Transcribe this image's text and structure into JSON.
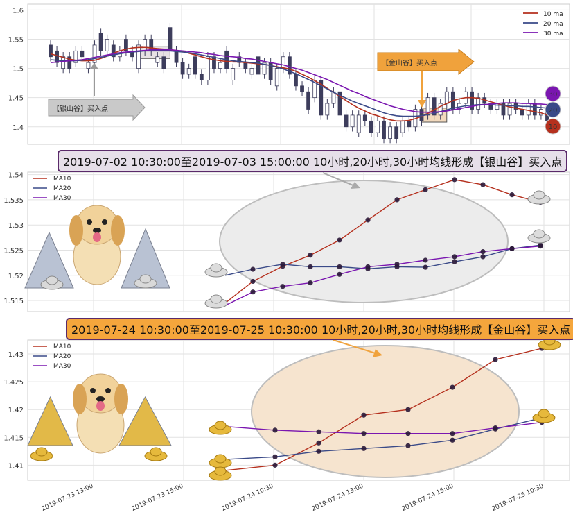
{
  "chart_data": [
    {
      "type": "candlestick",
      "ylim": [
        1.37,
        1.61
      ],
      "yticks": [
        1.4,
        1.45,
        1.5,
        1.55,
        1.6
      ],
      "ma_lines": [
        {
          "name": "10 ma",
          "color": "#b5301e",
          "values": [
            1.525,
            1.522,
            1.519,
            1.516,
            1.514,
            1.513,
            1.513,
            1.514,
            1.517,
            1.521,
            1.526,
            1.53,
            1.533,
            1.535,
            1.536,
            1.536,
            1.535,
            1.534,
            1.533,
            1.532,
            1.531,
            1.529,
            1.526,
            1.523,
            1.52,
            1.517,
            1.515,
            1.513,
            1.512,
            1.511,
            1.511,
            1.51,
            1.509,
            1.508,
            1.507,
            1.505,
            1.503,
            1.501,
            1.499,
            1.495,
            1.49,
            1.485,
            1.479,
            1.473,
            1.466,
            1.459,
            1.452,
            1.445,
            1.438,
            1.432,
            1.427,
            1.422,
            1.419,
            1.415,
            1.412,
            1.41,
            1.41,
            1.411,
            1.414,
            1.418,
            1.423,
            1.429,
            1.435,
            1.44,
            1.445,
            1.448,
            1.45,
            1.45,
            1.449,
            1.446,
            1.443,
            1.44,
            1.437,
            1.434,
            1.432,
            1.43,
            1.428,
            1.426,
            1.424,
            1.42
          ]
        },
        {
          "name": "20 ma",
          "color": "#3a4a88",
          "values": [
            1.515,
            1.514,
            1.513,
            1.513,
            1.513,
            1.514,
            1.515,
            1.517,
            1.519,
            1.521,
            1.523,
            1.525,
            1.527,
            1.528,
            1.529,
            1.53,
            1.53,
            1.53,
            1.53,
            1.53,
            1.529,
            1.528,
            1.527,
            1.525,
            1.523,
            1.521,
            1.519,
            1.517,
            1.515,
            1.513,
            1.512,
            1.511,
            1.51,
            1.509,
            1.507,
            1.505,
            1.502,
            1.499,
            1.495,
            1.491,
            1.486,
            1.481,
            1.476,
            1.47,
            1.465,
            1.459,
            1.454,
            1.449,
            1.444,
            1.44,
            1.436,
            1.432,
            1.428,
            1.424,
            1.421,
            1.419,
            1.418,
            1.418,
            1.418,
            1.419,
            1.421,
            1.423,
            1.426,
            1.429,
            1.432,
            1.434,
            1.436,
            1.437,
            1.438,
            1.438,
            1.438,
            1.437,
            1.437,
            1.436,
            1.436,
            1.435,
            1.435,
            1.434,
            1.433,
            1.432
          ]
        },
        {
          "name": "30 ma",
          "color": "#7a16b0",
          "values": [
            1.51,
            1.511,
            1.512,
            1.513,
            1.514,
            1.515,
            1.517,
            1.519,
            1.521,
            1.523,
            1.525,
            1.527,
            1.528,
            1.529,
            1.53,
            1.531,
            1.532,
            1.532,
            1.532,
            1.532,
            1.531,
            1.53,
            1.529,
            1.528,
            1.527,
            1.525,
            1.524,
            1.522,
            1.521,
            1.52,
            1.519,
            1.517,
            1.516,
            1.514,
            1.512,
            1.51,
            1.508,
            1.506,
            1.503,
            1.5,
            1.497,
            1.493,
            1.489,
            1.485,
            1.481,
            1.476,
            1.471,
            1.466,
            1.461,
            1.457,
            1.452,
            1.448,
            1.444,
            1.44,
            1.436,
            1.433,
            1.43,
            1.428,
            1.426,
            1.425,
            1.425,
            1.425,
            1.426,
            1.427,
            1.429,
            1.431,
            1.433,
            1.435,
            1.437,
            1.438,
            1.439,
            1.44,
            1.441,
            1.441,
            1.441,
            1.44,
            1.44,
            1.439,
            1.439,
            1.438
          ]
        }
      ],
      "candles": [
        [
          1.54,
          1.52
        ],
        [
          1.53,
          1.51
        ],
        [
          1.5,
          1.52
        ],
        [
          1.52,
          1.5
        ],
        [
          1.51,
          1.53
        ],
        [
          1.53,
          1.52
        ],
        [
          1.5,
          1.51
        ],
        [
          1.51,
          1.54
        ],
        [
          1.56,
          1.53
        ],
        [
          1.53,
          1.55
        ],
        [
          1.54,
          1.52
        ],
        [
          1.52,
          1.53
        ],
        [
          1.55,
          1.53
        ],
        [
          1.53,
          1.52
        ],
        [
          1.5,
          1.54
        ],
        [
          1.53,
          1.55
        ],
        [
          1.55,
          1.53
        ],
        [
          1.51,
          1.52
        ],
        [
          1.52,
          1.5
        ],
        [
          1.57,
          1.53
        ],
        [
          1.53,
          1.51
        ],
        [
          1.51,
          1.49
        ],
        [
          1.49,
          1.5
        ],
        [
          1.52,
          1.49
        ],
        [
          1.49,
          1.48
        ],
        [
          1.48,
          1.52
        ],
        [
          1.52,
          1.5
        ],
        [
          1.5,
          1.51
        ],
        [
          1.53,
          1.5
        ],
        [
          1.48,
          1.5
        ],
        [
          1.52,
          1.51
        ],
        [
          1.51,
          1.5
        ],
        [
          1.49,
          1.5
        ],
        [
          1.52,
          1.49
        ],
        [
          1.49,
          1.51
        ],
        [
          1.51,
          1.48
        ],
        [
          1.47,
          1.5
        ],
        [
          1.5,
          1.52
        ],
        [
          1.52,
          1.49
        ],
        [
          1.49,
          1.47
        ],
        [
          1.47,
          1.46
        ],
        [
          1.46,
          1.43
        ],
        [
          1.45,
          1.48
        ],
        [
          1.48,
          1.42
        ],
        [
          1.42,
          1.44
        ],
        [
          1.44,
          1.46
        ],
        [
          1.46,
          1.42
        ],
        [
          1.42,
          1.4
        ],
        [
          1.4,
          1.42
        ],
        [
          1.39,
          1.42
        ],
        [
          1.42,
          1.41
        ],
        [
          1.41,
          1.39
        ],
        [
          1.39,
          1.41
        ],
        [
          1.41,
          1.38
        ],
        [
          1.38,
          1.4
        ],
        [
          1.4,
          1.38
        ],
        [
          1.39,
          1.41
        ],
        [
          1.41,
          1.4
        ],
        [
          1.4,
          1.43
        ],
        [
          1.43,
          1.41
        ],
        [
          1.42,
          1.45
        ],
        [
          1.45,
          1.42
        ],
        [
          1.42,
          1.44
        ],
        [
          1.44,
          1.46
        ],
        [
          1.46,
          1.43
        ],
        [
          1.43,
          1.44
        ],
        [
          1.44,
          1.46
        ],
        [
          1.46,
          1.43
        ],
        [
          1.43,
          1.45
        ],
        [
          1.45,
          1.44
        ],
        [
          1.44,
          1.43
        ],
        [
          1.43,
          1.44
        ],
        [
          1.44,
          1.42
        ],
        [
          1.42,
          1.44
        ],
        [
          1.44,
          1.43
        ],
        [
          1.43,
          1.42
        ],
        [
          1.42,
          1.44
        ],
        [
          1.44,
          1.42
        ],
        [
          1.42,
          1.43
        ],
        [
          1.43,
          1.41
        ]
      ],
      "legend": [
        "10 ma",
        "20 ma",
        "30 ma"
      ],
      "badges": [
        "30",
        "20",
        "10"
      ],
      "annotations": {
        "silver": "【银山谷】买入点",
        "gold": "【金山谷】买入点"
      }
    },
    {
      "type": "line",
      "ylim": [
        1.5128,
        1.5405
      ],
      "yticks": [
        1.515,
        1.52,
        1.525,
        1.53,
        1.535,
        1.54
      ],
      "series": [
        {
          "name": "MA10",
          "color": "#b5301e",
          "values": [
            1.5145,
            1.5188,
            1.5218,
            1.524,
            1.527,
            1.531,
            1.535,
            1.537,
            1.539,
            1.538,
            1.536,
            1.5345
          ]
        },
        {
          "name": "MA20",
          "color": "#3a4a88",
          "values": [
            1.52,
            1.5212,
            1.5222,
            1.5217,
            1.5217,
            1.5213,
            1.5217,
            1.5216,
            1.5227,
            1.5237,
            1.5253,
            1.526
          ]
        },
        {
          "name": "MA30",
          "color": "#7a16b0",
          "values": [
            1.514,
            1.5167,
            1.5178,
            1.5185,
            1.5202,
            1.5217,
            1.5222,
            1.523,
            1.5237,
            1.5247,
            1.5253,
            1.5258
          ]
        }
      ],
      "banner": "2019-07-02 10:30:00至2019-07-03 15:00:00 10小时,20小时,30小时均线形成【银山谷】买入点"
    },
    {
      "type": "line",
      "ylim": [
        1.4073,
        1.4325
      ],
      "yticks": [
        1.41,
        1.415,
        1.42,
        1.425,
        1.43
      ],
      "x_tick_labels": [
        "2019-07-23 13:00",
        "2019-07-23 15:00",
        "2019-07-24 10:30",
        "2019-07-24 13:00",
        "2019-07-24 15:00",
        "2019-07-25 10:30"
      ],
      "series": [
        {
          "name": "MA10",
          "color": "#b5301e",
          "values": [
            1.409,
            1.41,
            1.414,
            1.419,
            1.42,
            1.424,
            1.429,
            1.431
          ]
        },
        {
          "name": "MA20",
          "color": "#3a4a88",
          "values": [
            1.411,
            1.4115,
            1.4125,
            1.413,
            1.4135,
            1.4145,
            1.4165,
            1.4185
          ]
        },
        {
          "name": "MA30",
          "color": "#7a16b0",
          "values": [
            1.417,
            1.4163,
            1.416,
            1.4157,
            1.4157,
            1.4157,
            1.4167,
            1.4177
          ]
        }
      ],
      "banner": "2019-07-24 10:30:00至2019-07-25 10:30:00 10小时,20小时,30小时均线形成【金山谷】买入点"
    }
  ]
}
